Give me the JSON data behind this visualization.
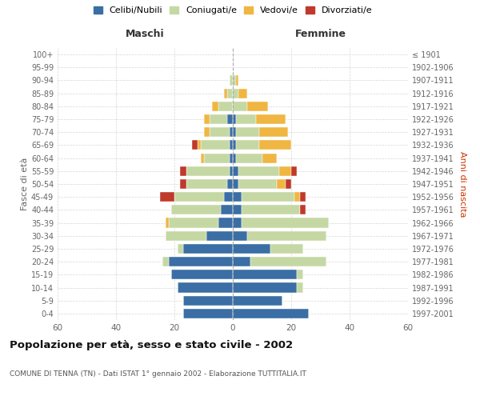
{
  "age_groups": [
    "0-4",
    "5-9",
    "10-14",
    "15-19",
    "20-24",
    "25-29",
    "30-34",
    "35-39",
    "40-44",
    "45-49",
    "50-54",
    "55-59",
    "60-64",
    "65-69",
    "70-74",
    "75-79",
    "80-84",
    "85-89",
    "90-94",
    "95-99",
    "100+"
  ],
  "birth_years": [
    "1997-2001",
    "1992-1996",
    "1987-1991",
    "1982-1986",
    "1977-1981",
    "1972-1976",
    "1967-1971",
    "1962-1966",
    "1957-1961",
    "1952-1956",
    "1947-1951",
    "1942-1946",
    "1937-1941",
    "1932-1936",
    "1927-1931",
    "1922-1926",
    "1917-1921",
    "1912-1916",
    "1907-1911",
    "1902-1906",
    "≤ 1901"
  ],
  "maschi": {
    "celibi": [
      17,
      17,
      19,
      21,
      22,
      17,
      9,
      5,
      4,
      3,
      2,
      1,
      1,
      1,
      1,
      2,
      0,
      0,
      0,
      0,
      0
    ],
    "coniugati": [
      0,
      0,
      0,
      0,
      2,
      2,
      14,
      17,
      17,
      17,
      14,
      15,
      9,
      10,
      7,
      6,
      5,
      2,
      1,
      0,
      0
    ],
    "vedovi": [
      0,
      0,
      0,
      0,
      0,
      0,
      0,
      1,
      0,
      0,
      0,
      0,
      1,
      1,
      2,
      2,
      2,
      1,
      0,
      0,
      0
    ],
    "divorziati": [
      0,
      0,
      0,
      0,
      0,
      0,
      0,
      0,
      0,
      5,
      2,
      2,
      0,
      2,
      0,
      0,
      0,
      0,
      0,
      0,
      0
    ]
  },
  "femmine": {
    "nubili": [
      26,
      17,
      22,
      22,
      6,
      13,
      5,
      3,
      3,
      3,
      2,
      2,
      1,
      1,
      1,
      1,
      0,
      0,
      0,
      0,
      0
    ],
    "coniugate": [
      0,
      0,
      2,
      2,
      26,
      11,
      27,
      30,
      20,
      18,
      13,
      14,
      9,
      8,
      8,
      7,
      5,
      2,
      1,
      0,
      0
    ],
    "vedove": [
      0,
      0,
      0,
      0,
      0,
      0,
      0,
      0,
      0,
      2,
      3,
      4,
      5,
      11,
      10,
      10,
      7,
      3,
      1,
      0,
      0
    ],
    "divorziate": [
      0,
      0,
      0,
      0,
      0,
      0,
      0,
      0,
      2,
      2,
      2,
      2,
      0,
      0,
      0,
      0,
      0,
      0,
      0,
      0,
      0
    ]
  },
  "colors": {
    "celibi": "#3a6ea5",
    "coniugati": "#c5d8a4",
    "vedovi": "#f0b642",
    "divorziati": "#c0392b"
  },
  "title": "Popolazione per età, sesso e stato civile - 2002",
  "subtitle": "COMUNE DI TENNA (TN) - Dati ISTAT 1° gennaio 2002 - Elaborazione TUTTITALIA.IT",
  "xlabel_left": "Maschi",
  "xlabel_right": "Femmine",
  "ylabel_left": "Fasce di età",
  "ylabel_right": "Anni di nascita",
  "xlim": 60,
  "legend_labels": [
    "Celibi/Nubili",
    "Coniugati/e",
    "Vedovi/e",
    "Divorziati/e"
  ],
  "bg_color": "#ffffff",
  "grid_color": "#cccccc"
}
